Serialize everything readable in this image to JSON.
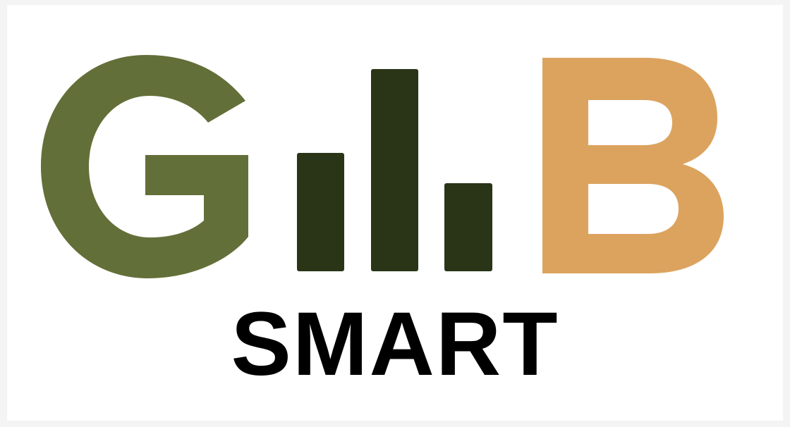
{
  "logo": {
    "letter_left": "G",
    "letter_right": "B",
    "wordmark": "SMART",
    "bar_levels": [
      0.57,
      0.97,
      0.42
    ]
  },
  "colors": {
    "green_letter": "#636f38",
    "dark_green_bars": "#2a3518",
    "orange_letter": "#dca35f",
    "wordmark": "#000000",
    "background": "#ffffff"
  }
}
